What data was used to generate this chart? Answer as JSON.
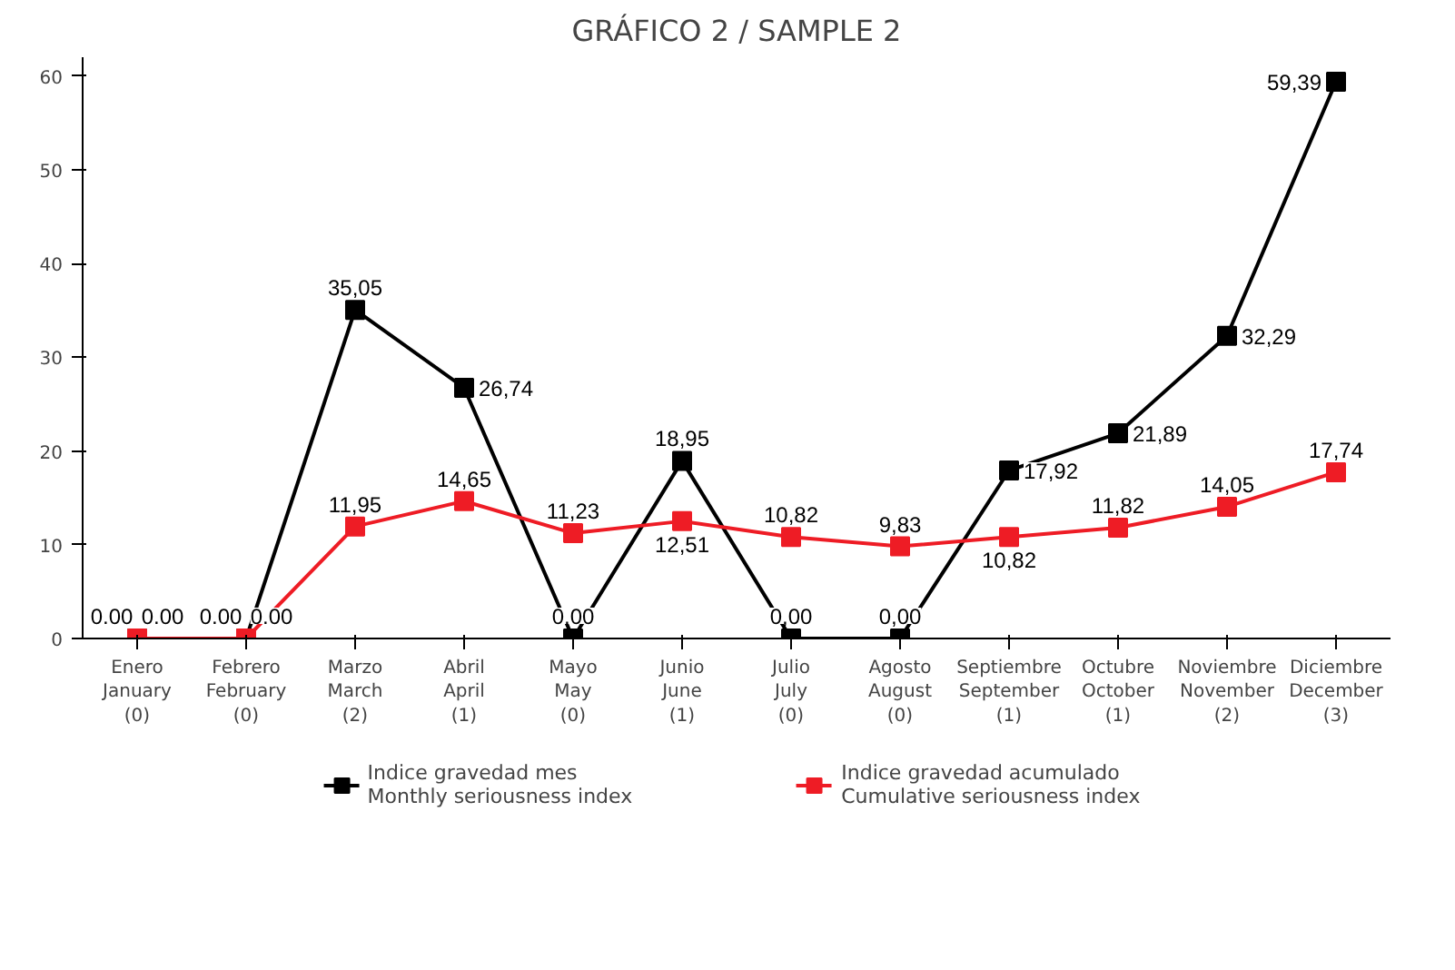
{
  "chart_data": {
    "type": "line",
    "title": "GRÁFICO 2 / SAMPLE 2",
    "categories": [
      "Enero\nJanuary\n(0)",
      "Febrero\nFebruary\n(0)",
      "Marzo\nMarch\n(2)",
      "Abril\nApril\n(1)",
      "Mayo\nMay\n(0)",
      "Junio\nJune\n(1)",
      "Julio\nJuly\n(0)",
      "Agosto\nAugust\n(0)",
      "Septiembre\nSeptember\n(1)",
      "Octubre\nOctober\n(1)",
      "Noviembre\nNovember\n(2)",
      "Diciembre\nDecember\n(3)"
    ],
    "series": [
      {
        "name": "Indice gravedad mes\nMonthly seriousness index",
        "color": "#000000",
        "values": [
          0,
          0,
          35.05,
          26.74,
          0,
          18.95,
          0,
          0,
          17.92,
          21.89,
          32.29,
          59.39
        ],
        "value_labels": [
          "0.00",
          "0.00",
          "35,05",
          "26,74",
          "0,00",
          "18,95",
          "0,00",
          "0,00",
          "17,92",
          "21,89",
          "32,29",
          "59,39"
        ]
      },
      {
        "name": "Indice gravedad acumulado\nCumulative seriousness index",
        "color": "#ee1c25",
        "values": [
          0,
          0,
          11.95,
          14.65,
          11.23,
          12.51,
          10.82,
          9.83,
          10.82,
          11.82,
          14.05,
          17.74
        ],
        "value_labels": [
          "0.00",
          "0.00",
          "11,95",
          "14,65",
          "11,23",
          "12,51",
          "10,82",
          "9,83",
          "10,82",
          "11,82",
          "14,05",
          "17,74"
        ]
      }
    ],
    "ylim": [
      0,
      62
    ],
    "yticks": [
      0,
      10,
      20,
      30,
      40,
      50,
      60
    ],
    "grid": false,
    "legend": "bottom",
    "marker": "square",
    "line_style": "solid"
  }
}
